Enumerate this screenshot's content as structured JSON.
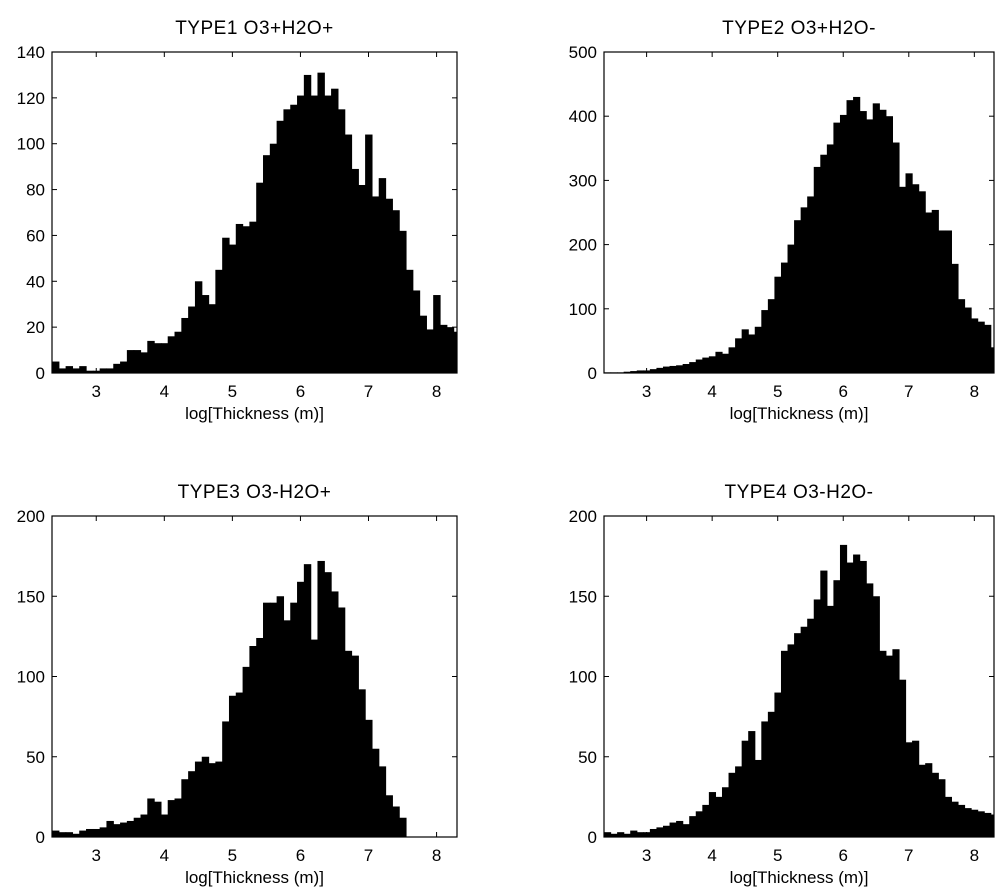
{
  "figure": {
    "background": "#ffffff",
    "bar_color": "#000000"
  },
  "chart_data": [
    {
      "type": "bar",
      "title": "TYPE1  O3+H2O+",
      "xlabel": "log[Thickness (m)]",
      "ylabel": "",
      "xlim": [
        2.35,
        8.3
      ],
      "ylim": [
        0,
        140
      ],
      "xticks": [
        3,
        4,
        5,
        6,
        7,
        8
      ],
      "yticks": [
        0,
        20,
        40,
        60,
        80,
        100,
        120,
        140
      ],
      "grid": false,
      "legend": "none",
      "bin_start": 2.35,
      "bin_width": 0.1,
      "values": [
        5,
        2,
        3,
        2,
        3,
        1,
        1,
        2,
        2,
        4,
        5,
        10,
        10,
        9,
        14,
        13,
        13,
        16,
        18,
        24,
        29,
        40,
        34,
        30,
        45,
        59,
        56,
        65,
        64,
        66,
        83,
        95,
        100,
        110,
        115,
        117,
        121,
        130,
        121,
        131,
        121,
        124,
        115,
        104,
        89,
        82,
        104,
        77,
        85,
        76,
        71,
        62,
        45,
        36,
        25,
        19,
        34,
        21,
        20,
        18
      ]
    },
    {
      "type": "bar",
      "title": "TYPE2  O3+H2O-",
      "xlabel": "log[Thickness (m)]",
      "ylabel": "",
      "xlim": [
        2.35,
        8.3
      ],
      "ylim": [
        0,
        500
      ],
      "xticks": [
        3,
        4,
        5,
        6,
        7,
        8
      ],
      "yticks": [
        0,
        100,
        200,
        300,
        400,
        500
      ],
      "grid": false,
      "legend": "none",
      "bin_start": 2.35,
      "bin_width": 0.1,
      "values": [
        1,
        1,
        1,
        2,
        3,
        4,
        4,
        6,
        8,
        10,
        11,
        12,
        14,
        17,
        21,
        24,
        26,
        33,
        30,
        40,
        54,
        68,
        60,
        72,
        98,
        115,
        150,
        172,
        200,
        238,
        258,
        275,
        321,
        340,
        356,
        390,
        402,
        425,
        430,
        408,
        395,
        420,
        410,
        400,
        359,
        290,
        311,
        294,
        283,
        250,
        254,
        222,
        222,
        170,
        115,
        102,
        85,
        80,
        75,
        40
      ]
    },
    {
      "type": "bar",
      "title": "TYPE3  O3-H2O+",
      "xlabel": "log[Thickness (m)]",
      "ylabel": "",
      "xlim": [
        2.35,
        8.3
      ],
      "ylim": [
        0,
        200
      ],
      "xticks": [
        3,
        4,
        5,
        6,
        7,
        8
      ],
      "yticks": [
        0,
        50,
        100,
        150,
        200
      ],
      "grid": false,
      "legend": "none",
      "bin_start": 2.35,
      "bin_width": 0.1,
      "values": [
        4,
        3,
        3,
        2,
        4,
        5,
        5,
        6,
        10,
        8,
        9,
        10,
        12,
        14,
        24,
        22,
        14,
        23,
        24,
        36,
        41,
        47,
        50,
        46,
        47,
        72,
        88,
        90,
        106,
        119,
        124,
        146,
        146,
        150,
        135,
        146,
        159,
        170,
        123,
        172,
        165,
        153,
        143,
        116,
        113,
        92,
        73,
        55,
        44,
        26,
        19,
        12
      ]
    },
    {
      "type": "bar",
      "title": "TYPE4  O3-H2O-",
      "xlabel": "log[Thickness (m)]",
      "ylabel": "",
      "xlim": [
        2.35,
        8.3
      ],
      "ylim": [
        0,
        200
      ],
      "xticks": [
        3,
        4,
        5,
        6,
        7,
        8
      ],
      "yticks": [
        0,
        50,
        100,
        150,
        200
      ],
      "grid": false,
      "legend": "none",
      "bin_start": 2.35,
      "bin_width": 0.1,
      "values": [
        3,
        2,
        3,
        2,
        4,
        3,
        3,
        5,
        6,
        7,
        9,
        10,
        8,
        13,
        16,
        20,
        28,
        25,
        31,
        40,
        44,
        60,
        66,
        48,
        72,
        78,
        90,
        116,
        120,
        127,
        131,
        136,
        148,
        166,
        144,
        160,
        182,
        171,
        176,
        172,
        158,
        150,
        116,
        113,
        117,
        98,
        59,
        60,
        45,
        46,
        40,
        36,
        25,
        22,
        20,
        18,
        17,
        16,
        15,
        14
      ]
    }
  ]
}
